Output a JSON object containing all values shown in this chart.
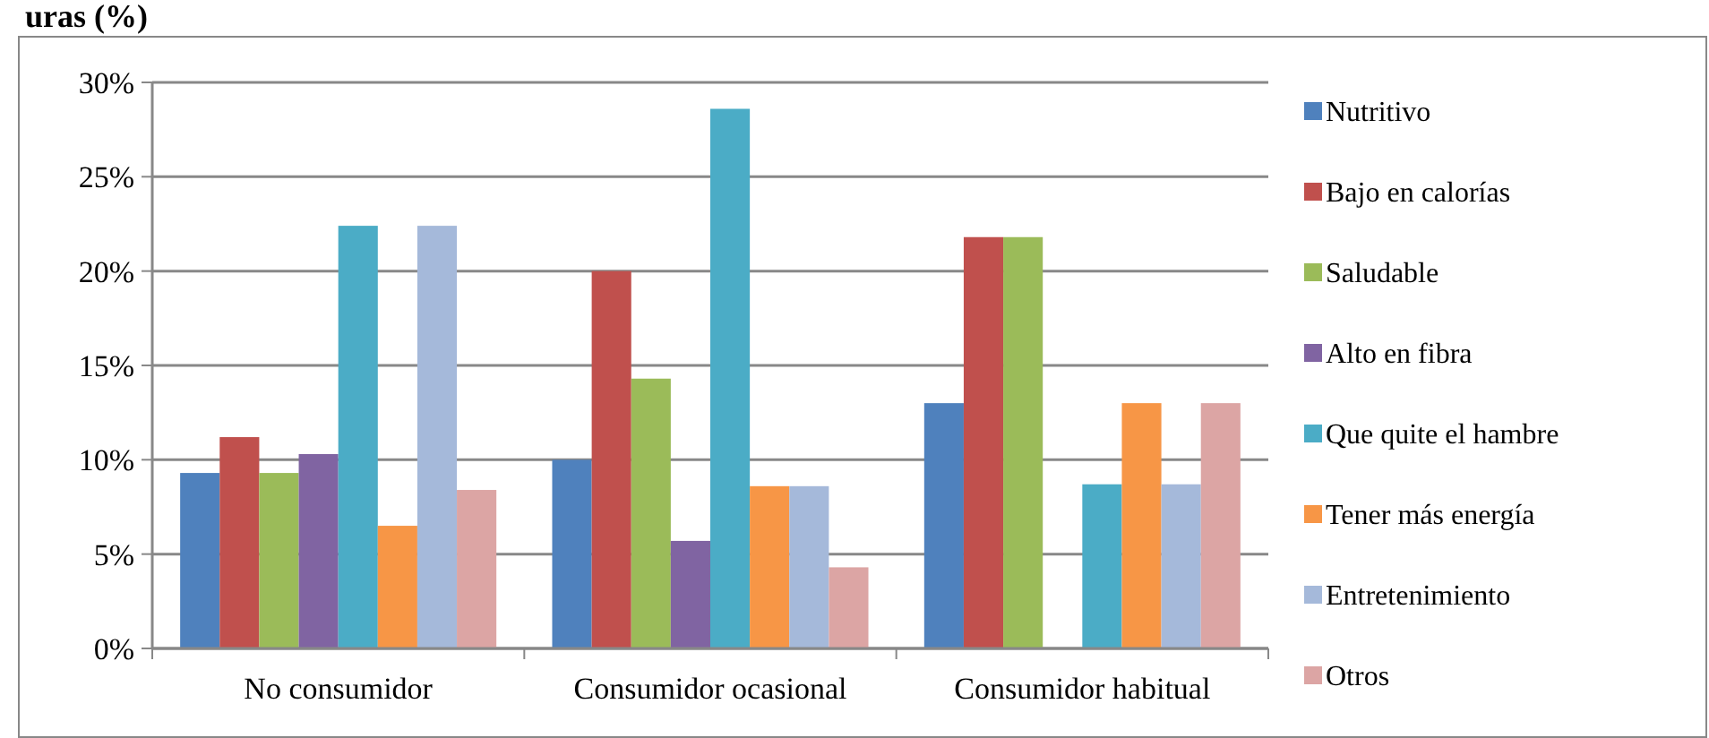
{
  "chart_data": {
    "type": "bar",
    "title": "uras (%)",
    "categories": [
      "No consumidor",
      "Consumidor ocasional",
      "Consumidor habitual"
    ],
    "series": [
      {
        "name": "Nutritivo",
        "color": "#4f81bd",
        "values": [
          9.3,
          10.0,
          13.0
        ]
      },
      {
        "name": "Bajo en calorías",
        "color": "#c0504d",
        "values": [
          11.2,
          20.0,
          21.8
        ]
      },
      {
        "name": "Saludable",
        "color": "#9bbb59",
        "values": [
          9.3,
          14.3,
          21.8
        ]
      },
      {
        "name": "Alto en fibra",
        "color": "#8064a2",
        "values": [
          10.3,
          5.7,
          0
        ]
      },
      {
        "name": "Que quite el hambre",
        "color": "#4bacc6",
        "values": [
          22.4,
          28.6,
          8.7
        ]
      },
      {
        "name": "Tener más energía",
        "color": "#f79646",
        "values": [
          6.5,
          8.6,
          13.0
        ]
      },
      {
        "name": "Entretenimiento",
        "color": "#a5b9da",
        "values": [
          22.4,
          8.6,
          8.7
        ]
      },
      {
        "name": "Otros",
        "color": "#dca5a4",
        "values": [
          8.4,
          4.3,
          13.0
        ]
      }
    ],
    "ylim": [
      0,
      30
    ],
    "yticks": [
      {
        "value": 0,
        "label": "0%"
      },
      {
        "value": 5,
        "label": "5%"
      },
      {
        "value": 10,
        "label": "10%"
      },
      {
        "value": 15,
        "label": "15%"
      },
      {
        "value": 20,
        "label": "20%"
      },
      {
        "value": 25,
        "label": "25%"
      },
      {
        "value": 30,
        "label": "30%"
      }
    ],
    "grid": "y",
    "legend": "right"
  }
}
